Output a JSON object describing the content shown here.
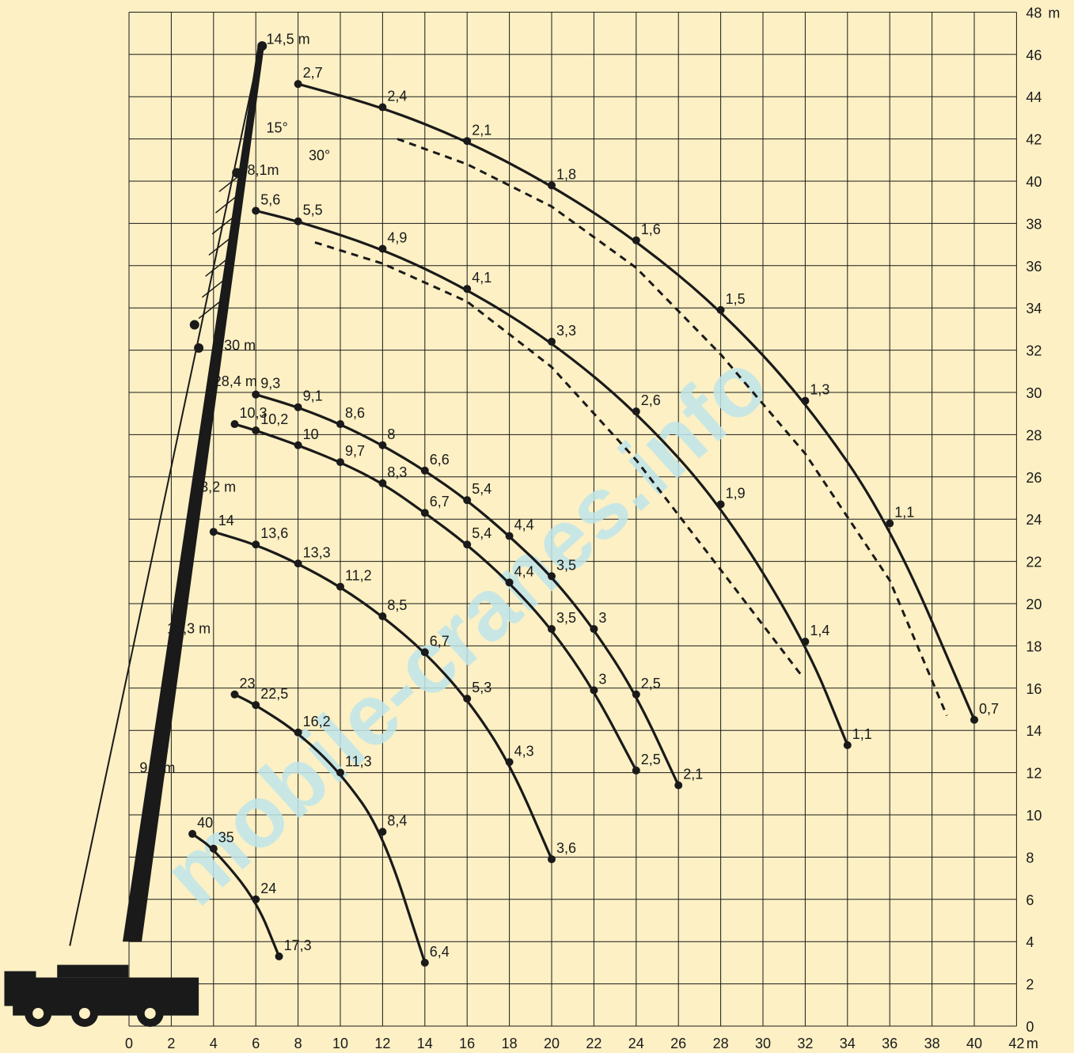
{
  "chart_data": {
    "type": "line",
    "title": "",
    "x_unit": "m",
    "y_unit": "m",
    "xlim": [
      0,
      42
    ],
    "ylim": [
      0,
      48
    ],
    "x_ticks": [
      0,
      2,
      4,
      6,
      8,
      10,
      12,
      14,
      16,
      18,
      20,
      22,
      24,
      26,
      28,
      30,
      32,
      34,
      36,
      38,
      40,
      42
    ],
    "y_ticks": [
      0,
      2,
      4,
      6,
      8,
      10,
      12,
      14,
      16,
      18,
      20,
      22,
      24,
      26,
      28,
      30,
      32,
      34,
      36,
      38,
      40,
      42,
      44,
      46,
      48
    ],
    "grid": true,
    "watermark": "mobile-cranes.info",
    "boom_labels": [
      "9,5 m",
      "16,3 m",
      "23,2 m",
      "28,4 m",
      "30 m",
      "8,1m",
      "14,5 m"
    ],
    "angle_labels": [
      "15°",
      "30°"
    ],
    "series": [
      {
        "boom": "9,5 m",
        "points": [
          {
            "x": 3.0,
            "y": 9.1,
            "load": "40"
          },
          {
            "x": 4.0,
            "y": 8.4,
            "load": "35"
          },
          {
            "x": 6.0,
            "y": 6.0,
            "load": "24"
          },
          {
            "x": 7.1,
            "y": 3.3,
            "load": "17,3"
          }
        ]
      },
      {
        "boom": "16,3 m",
        "points": [
          {
            "x": 5.0,
            "y": 15.7,
            "load": "23"
          },
          {
            "x": 6.0,
            "y": 15.2,
            "load": "22,5"
          },
          {
            "x": 8.0,
            "y": 13.9,
            "load": "16,2"
          },
          {
            "x": 10.0,
            "y": 12.0,
            "load": "11,3"
          },
          {
            "x": 12.0,
            "y": 9.2,
            "load": "8,4"
          },
          {
            "x": 14.0,
            "y": 3.0,
            "load": "6,4"
          }
        ]
      },
      {
        "boom": "23,2 m",
        "points": [
          {
            "x": 4.0,
            "y": 23.4,
            "load": "14"
          },
          {
            "x": 6.0,
            "y": 22.8,
            "load": "13,6"
          },
          {
            "x": 8.0,
            "y": 21.9,
            "load": "13,3"
          },
          {
            "x": 10.0,
            "y": 20.8,
            "load": "11,2"
          },
          {
            "x": 12.0,
            "y": 19.4,
            "load": "8,5"
          },
          {
            "x": 14.0,
            "y": 17.7,
            "load": "6,7"
          },
          {
            "x": 16.0,
            "y": 15.5,
            "load": "5,3"
          },
          {
            "x": 18.0,
            "y": 12.5,
            "load": "4,3"
          },
          {
            "x": 20.0,
            "y": 7.9,
            "load": "3,6"
          }
        ]
      },
      {
        "boom": "28,4 m",
        "points": [
          {
            "x": 5.0,
            "y": 28.5,
            "load": "10,3"
          },
          {
            "x": 6.0,
            "y": 28.2,
            "load": "10,2"
          },
          {
            "x": 8.0,
            "y": 27.5,
            "load": "10"
          },
          {
            "x": 10.0,
            "y": 26.7,
            "load": "9,7"
          },
          {
            "x": 12.0,
            "y": 25.7,
            "load": "8,3"
          },
          {
            "x": 14.0,
            "y": 24.3,
            "load": "6,7"
          },
          {
            "x": 16.0,
            "y": 22.8,
            "load": "5,4"
          },
          {
            "x": 18.0,
            "y": 21.0,
            "load": "4,4"
          },
          {
            "x": 20.0,
            "y": 18.8,
            "load": "3,5"
          },
          {
            "x": 22.0,
            "y": 15.9,
            "load": "3"
          },
          {
            "x": 24.0,
            "y": 12.1,
            "load": "2,5"
          }
        ]
      },
      {
        "boom": "30 m",
        "points": [
          {
            "x": 6.0,
            "y": 29.9,
            "load": "9,3"
          },
          {
            "x": 8.0,
            "y": 29.3,
            "load": "9,1"
          },
          {
            "x": 10.0,
            "y": 28.5,
            "load": "8,6"
          },
          {
            "x": 12.0,
            "y": 27.5,
            "load": "8"
          },
          {
            "x": 14.0,
            "y": 26.3,
            "load": "6,6"
          },
          {
            "x": 16.0,
            "y": 24.9,
            "load": "5,4"
          },
          {
            "x": 18.0,
            "y": 23.2,
            "load": "4,4"
          },
          {
            "x": 20.0,
            "y": 21.3,
            "load": "3,5"
          },
          {
            "x": 22.0,
            "y": 18.8,
            "load": "3"
          },
          {
            "x": 24.0,
            "y": 15.7,
            "load": "2,5"
          },
          {
            "x": 26.0,
            "y": 11.4,
            "load": "2,1"
          }
        ]
      },
      {
        "boom": "8,1m",
        "points": [
          {
            "x": 6.0,
            "y": 38.6,
            "load": "5,6"
          },
          {
            "x": 8.0,
            "y": 38.1,
            "load": "5,5"
          },
          {
            "x": 12.0,
            "y": 36.8,
            "load": "4,9"
          },
          {
            "x": 16.0,
            "y": 34.9,
            "load": "4,1"
          },
          {
            "x": 20.0,
            "y": 32.4,
            "load": "3,3"
          },
          {
            "x": 24.0,
            "y": 29.1,
            "load": "2,6"
          },
          {
            "x": 28.0,
            "y": 24.7,
            "load": "1,9"
          },
          {
            "x": 32.0,
            "y": 18.2,
            "load": "1,4"
          },
          {
            "x": 34.0,
            "y": 13.3,
            "load": "1,1"
          }
        ]
      },
      {
        "boom": "14,5 m",
        "points": [
          {
            "x": 8.0,
            "y": 44.6,
            "load": "2,7"
          },
          {
            "x": 12.0,
            "y": 43.5,
            "load": "2,4"
          },
          {
            "x": 16.0,
            "y": 41.9,
            "load": "2,1"
          },
          {
            "x": 20.0,
            "y": 39.8,
            "load": "1,8"
          },
          {
            "x": 24.0,
            "y": 37.2,
            "load": "1,6"
          },
          {
            "x": 28.0,
            "y": 33.9,
            "load": "1,5"
          },
          {
            "x": 32.0,
            "y": 29.6,
            "load": "1,3"
          },
          {
            "x": 36.0,
            "y": 23.8,
            "load": "1,1"
          },
          {
            "x": 40.0,
            "y": 14.5,
            "load": "0,7"
          }
        ]
      }
    ],
    "dashed_series": [
      {
        "boom": "8,1m",
        "angle": "30°",
        "points": [
          [
            8.8,
            37.1
          ],
          [
            12,
            36.1
          ],
          [
            16,
            34.3
          ],
          [
            20,
            31.2
          ],
          [
            24,
            26.8
          ],
          [
            28,
            21.6
          ],
          [
            31.9,
            16.5
          ]
        ]
      },
      {
        "boom": "14,5 m",
        "angle": "30°",
        "points": [
          [
            12.7,
            42.0
          ],
          [
            16,
            40.8
          ],
          [
            20,
            38.8
          ],
          [
            24,
            35.9
          ],
          [
            28,
            31.8
          ],
          [
            32,
            27.1
          ],
          [
            36,
            21.1
          ],
          [
            38.7,
            14.7
          ]
        ]
      }
    ]
  }
}
